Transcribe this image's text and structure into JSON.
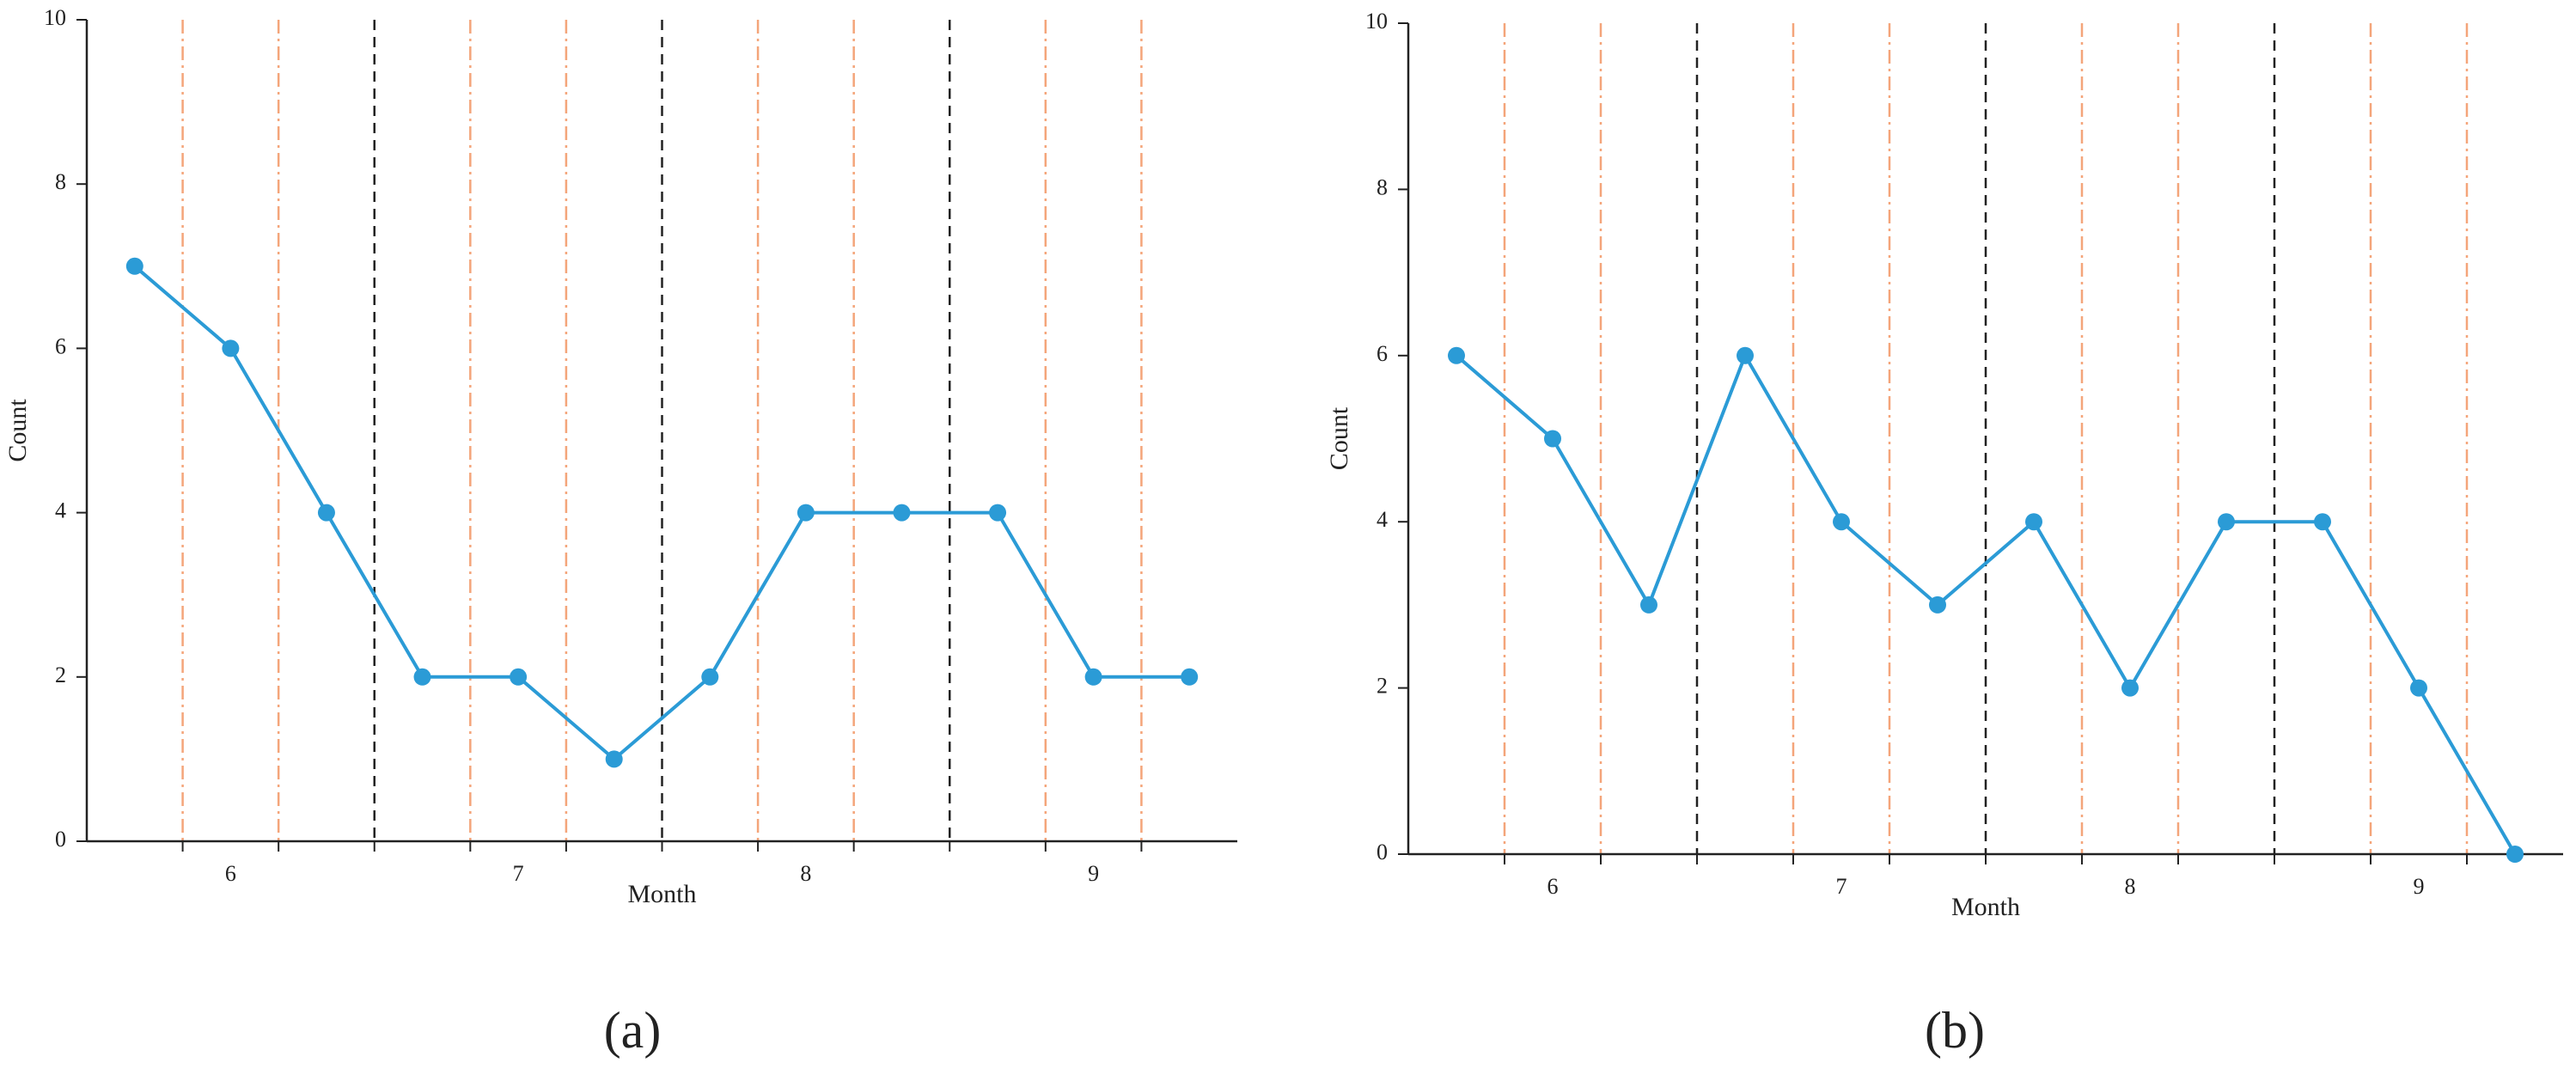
{
  "chart_data": [
    {
      "type": "line",
      "panel": "(a)",
      "x_label": "Month",
      "y_label": "Count",
      "categories": [
        null,
        "6",
        null,
        null,
        "7",
        null,
        null,
        "8",
        null,
        null,
        "9",
        null
      ],
      "series": [
        {
          "color": "#2b9bd6",
          "values": [
            7,
            6,
            4,
            2,
            2,
            1,
            2,
            4,
            4,
            4,
            2,
            2
          ]
        }
      ],
      "ylim": [
        0,
        10
      ],
      "yticks": [
        0,
        2,
        4,
        6,
        8,
        10
      ]
    },
    {
      "type": "line",
      "panel": "(b)",
      "x_label": "Month",
      "y_label": "Count",
      "categories": [
        null,
        "6",
        null,
        null,
        "7",
        null,
        null,
        "8",
        null,
        null,
        "9",
        null
      ],
      "series": [
        {
          "color": "#2b9bd6",
          "values": [
            6,
            5,
            3,
            6,
            4,
            3,
            4,
            2,
            4,
            4,
            2,
            0
          ]
        }
      ],
      "ylim": [
        0,
        10
      ],
      "yticks": [
        0,
        2,
        4,
        6,
        8,
        10
      ]
    }
  ]
}
